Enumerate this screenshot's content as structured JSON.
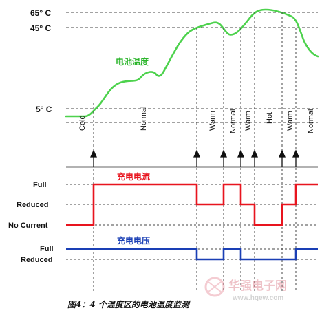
{
  "temperatures": {
    "t65": "65° C",
    "t45": "45° C",
    "t5": "5° C"
  },
  "battery_temp_label": "电池温度",
  "zones": [
    "Cold",
    "Normal",
    "Warm",
    "Normal",
    "Warm",
    "Hot",
    "Warm",
    "Normal"
  ],
  "charge_current": {
    "title": "充电电流",
    "levels": {
      "full": "Full",
      "reduced": "Reduced",
      "none": "No Current"
    },
    "color": "#e8141e"
  },
  "charge_voltage": {
    "title": "充电电压",
    "levels": {
      "full": "Full",
      "reduced": "Reduced"
    },
    "color": "#1a3fb5"
  },
  "temperature_curve_color": "#4dd24d",
  "caption": "图4：4 个温度区的电池温度监测",
  "watermark": {
    "brand": "华强电子网",
    "url": "www.hqew.com"
  }
}
